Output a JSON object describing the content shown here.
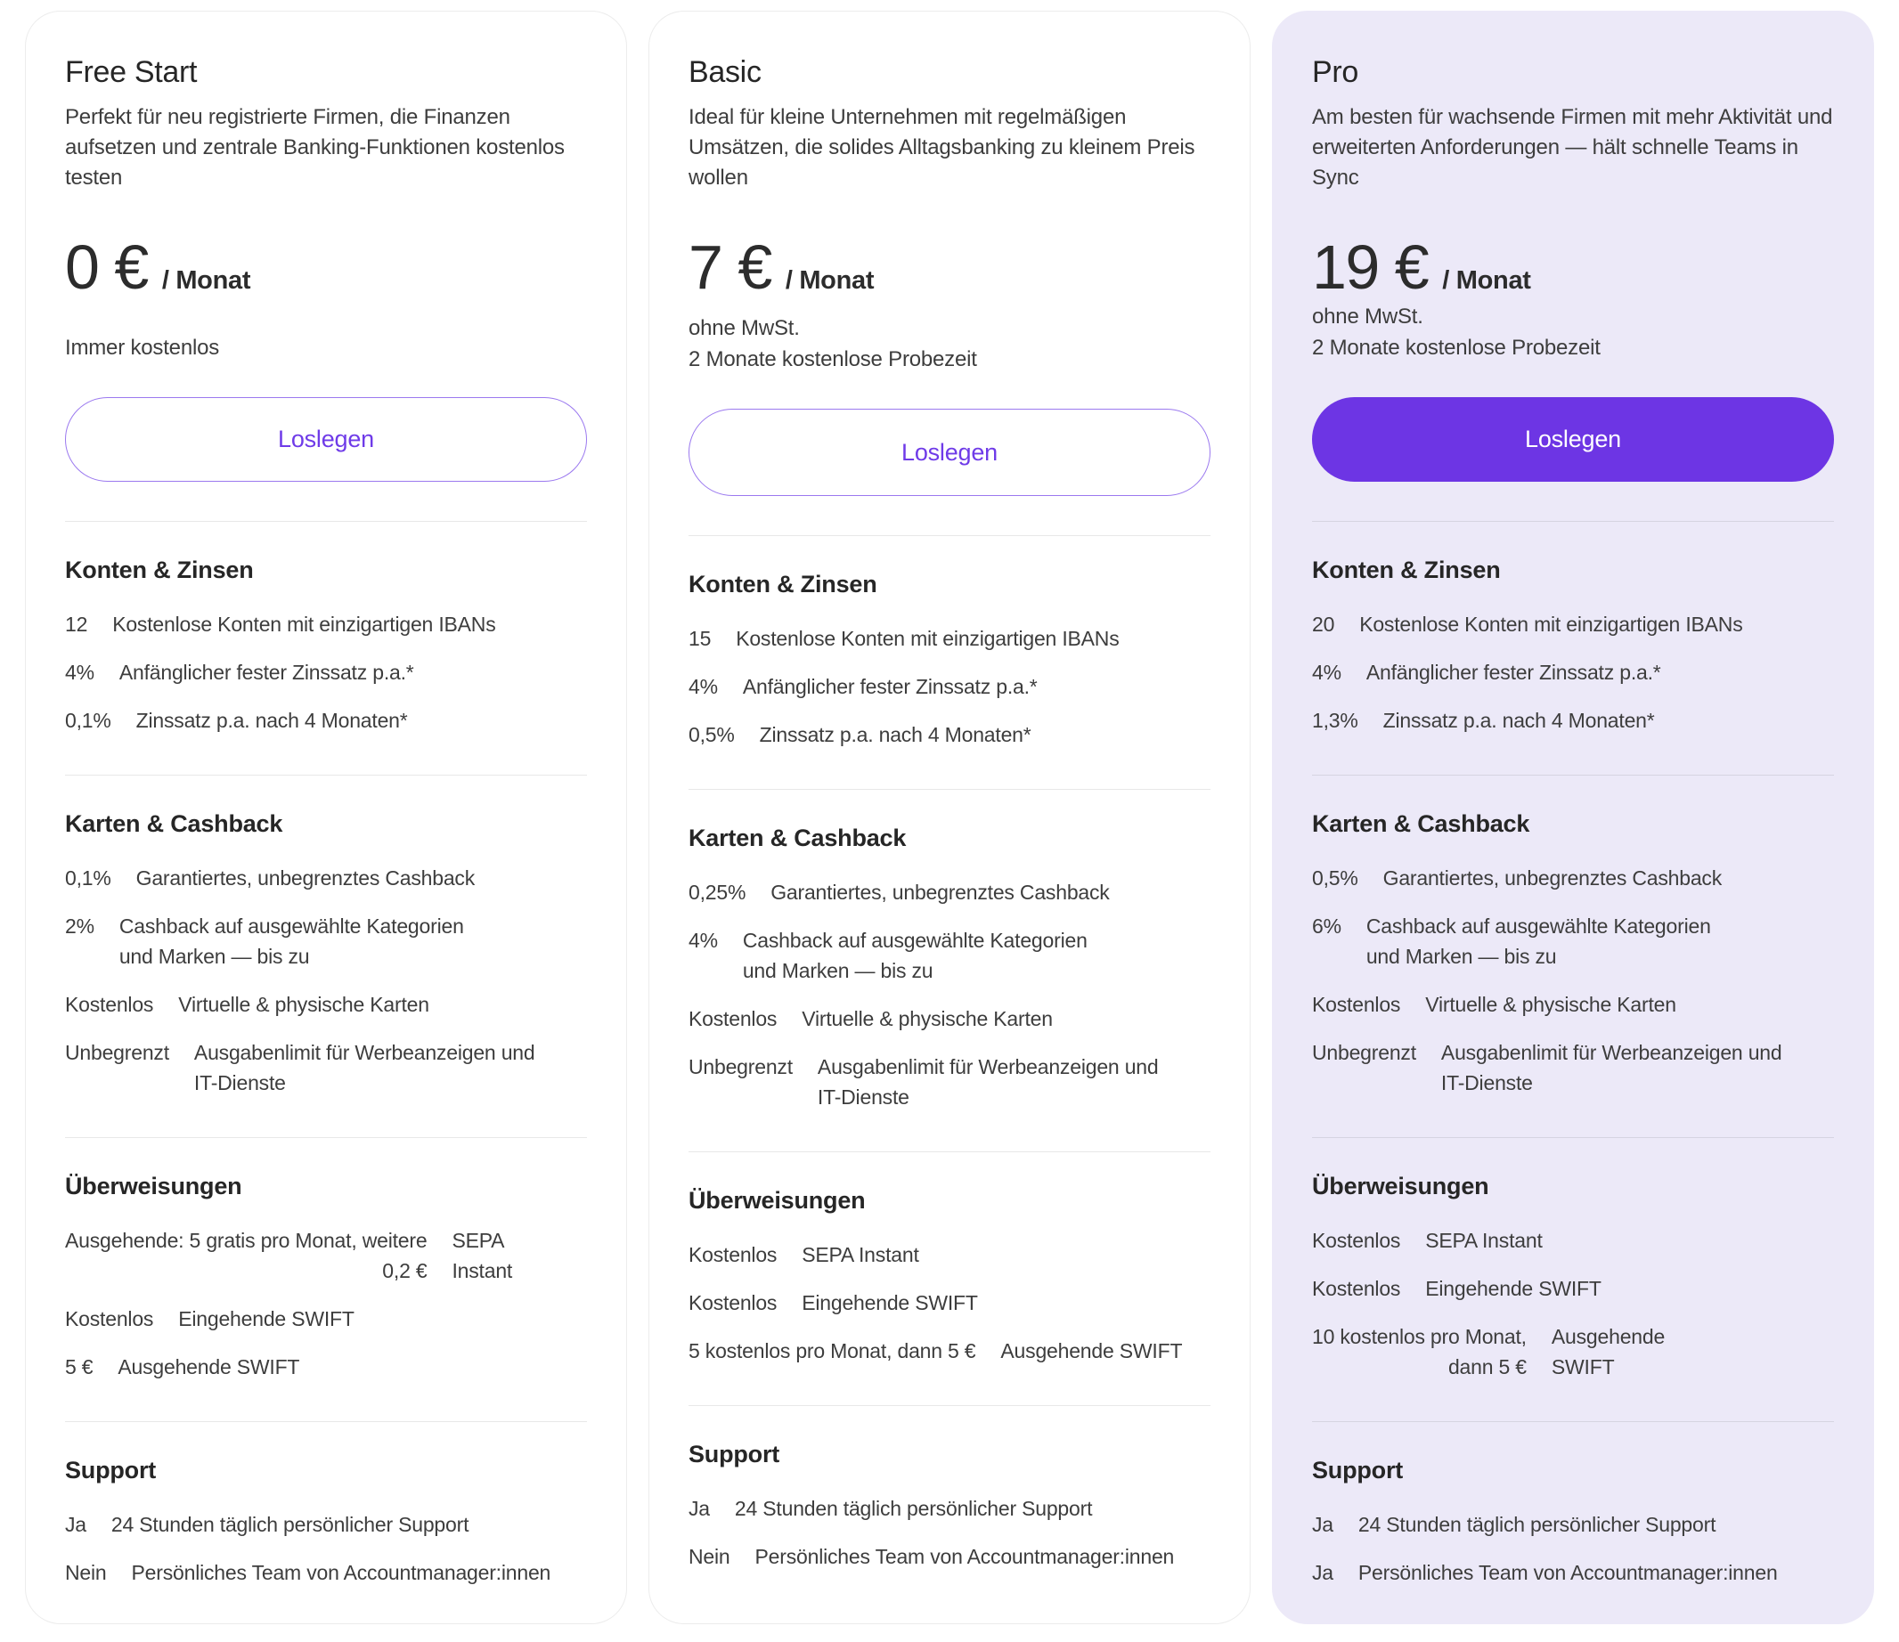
{
  "colors": {
    "accent": "#6D35E4",
    "accent_text": "#6F3BE8",
    "accent_border": "#9B79EF",
    "card_highlight_bg": "#ECE9F8",
    "card_border": "#ECECEC",
    "text_dark": "#262626",
    "text_body": "#3D3D3D"
  },
  "plans": [
    {
      "name": "Free Start",
      "description": "Perfekt für neu registrierte Firmen, die Finanzen aufsetzen und zentrale Banking-Funktionen kostenlos testen",
      "price": "0 €",
      "per": "/ Monat",
      "notes": [
        "Immer kostenlos"
      ],
      "cta": "Loslegen",
      "highlighted": false,
      "sections": [
        {
          "title": "Konten & Zinsen",
          "rows": [
            {
              "label": "Kostenlose Konten mit einzigartigen IBANs",
              "value": "12"
            },
            {
              "label": "Anfänglicher fester Zinssatz p.a.*",
              "value": "4%"
            },
            {
              "label": "Zinssatz p.a. nach 4 Monaten*",
              "value": "0,1%"
            }
          ]
        },
        {
          "title": "Karten & Cashback",
          "rows": [
            {
              "label": "Garantiertes, unbegrenztes Cashback",
              "value": "0,1%"
            },
            {
              "label": "Cashback auf ausgewählte Kategorien\nund Marken — bis zu",
              "value": "2%"
            },
            {
              "label": "Virtuelle & physische Karten",
              "value": "Kostenlos"
            },
            {
              "label": "Ausgabenlimit für Werbeanzeigen und\nIT-Dienste",
              "value": "Unbegrenzt"
            }
          ]
        },
        {
          "title": "Überweisungen",
          "rows": [
            {
              "label": "SEPA\nInstant",
              "value": "Ausgehende: 5 gratis pro Monat, weitere\n0,2 €"
            },
            {
              "label": "Eingehende SWIFT",
              "value": "Kostenlos"
            },
            {
              "label": "Ausgehende SWIFT",
              "value": "5 €"
            }
          ]
        },
        {
          "title": "Support",
          "rows": [
            {
              "label": "24 Stunden täglich persönlicher Support",
              "value": "Ja"
            },
            {
              "label": "Persönliches Team von Accountmanager:innen",
              "value": "Nein"
            }
          ]
        }
      ]
    },
    {
      "name": "Basic",
      "description": "Ideal für kleine Unternehmen mit regelmäßigen Umsätzen, die solides Alltagsbanking zu kleinem Preis wollen",
      "price": "7 €",
      "per": "/ Monat",
      "notes": [
        "ohne MwSt.",
        "2 Monate kostenlose Probezeit"
      ],
      "cta": "Loslegen",
      "highlighted": false,
      "sections": [
        {
          "title": "Konten & Zinsen",
          "rows": [
            {
              "label": "Kostenlose Konten mit einzigartigen IBANs",
              "value": "15"
            },
            {
              "label": "Anfänglicher fester Zinssatz p.a.*",
              "value": "4%"
            },
            {
              "label": "Zinssatz p.a. nach 4 Monaten*",
              "value": "0,5%"
            }
          ]
        },
        {
          "title": "Karten & Cashback",
          "rows": [
            {
              "label": "Garantiertes, unbegrenztes Cashback",
              "value": "0,25%"
            },
            {
              "label": "Cashback auf ausgewählte Kategorien\nund Marken — bis zu",
              "value": "4%"
            },
            {
              "label": "Virtuelle & physische Karten",
              "value": "Kostenlos"
            },
            {
              "label": "Ausgabenlimit für Werbeanzeigen und\nIT-Dienste",
              "value": "Unbegrenzt"
            }
          ]
        },
        {
          "title": "Überweisungen",
          "rows": [
            {
              "label": "SEPA Instant",
              "value": "Kostenlos"
            },
            {
              "label": "Eingehende SWIFT",
              "value": "Kostenlos"
            },
            {
              "label": "Ausgehende SWIFT",
              "value": "5 kostenlos pro Monat, dann 5 €"
            }
          ]
        },
        {
          "title": "Support",
          "rows": [
            {
              "label": "24 Stunden täglich persönlicher Support",
              "value": "Ja"
            },
            {
              "label": "Persönliches Team von Accountmanager:innen",
              "value": "Nein"
            }
          ]
        }
      ]
    },
    {
      "name": "Pro",
      "description": "Am besten für wachsende Firmen mit mehr Aktivität und erweiterten Anforderungen — hält schnelle Teams in Sync",
      "price": "19 €",
      "per": "/ Monat",
      "notes": [
        "ohne MwSt.",
        "2 Monate kostenlose Probezeit"
      ],
      "cta": "Loslegen",
      "highlighted": true,
      "sections": [
        {
          "title": "Konten & Zinsen",
          "rows": [
            {
              "label": "Kostenlose Konten mit einzigartigen IBANs",
              "value": "20"
            },
            {
              "label": "Anfänglicher fester Zinssatz p.a.*",
              "value": "4%"
            },
            {
              "label": "Zinssatz p.a. nach 4 Monaten*",
              "value": "1,3%"
            }
          ]
        },
        {
          "title": "Karten & Cashback",
          "rows": [
            {
              "label": "Garantiertes, unbegrenztes Cashback",
              "value": "0,5%"
            },
            {
              "label": "Cashback auf ausgewählte Kategorien\nund Marken — bis zu",
              "value": "6%"
            },
            {
              "label": "Virtuelle & physische Karten",
              "value": "Kostenlos"
            },
            {
              "label": "Ausgabenlimit für Werbeanzeigen und\nIT-Dienste",
              "value": "Unbegrenzt"
            }
          ]
        },
        {
          "title": "Überweisungen",
          "rows": [
            {
              "label": "SEPA Instant",
              "value": "Kostenlos"
            },
            {
              "label": "Eingehende SWIFT",
              "value": "Kostenlos"
            },
            {
              "label": "Ausgehende\nSWIFT",
              "value": "10 kostenlos pro Monat,\ndann 5 €"
            }
          ]
        },
        {
          "title": "Support",
          "rows": [
            {
              "label": "24 Stunden täglich persönlicher Support",
              "value": "Ja"
            },
            {
              "label": "Persönliches Team von Accountmanager:innen",
              "value": "Ja"
            }
          ]
        }
      ]
    }
  ]
}
